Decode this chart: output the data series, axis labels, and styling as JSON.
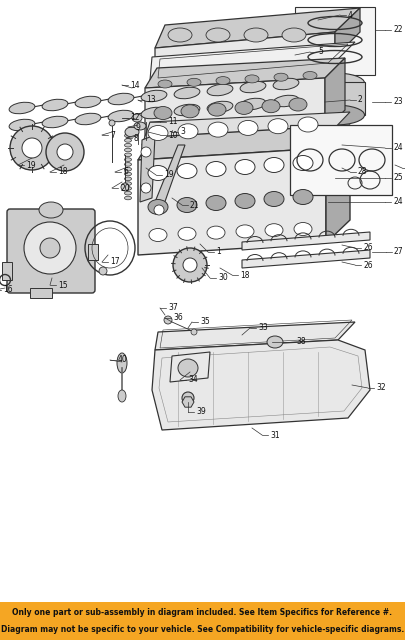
{
  "fig_width": 4.05,
  "fig_height": 6.4,
  "dpi": 100,
  "bg_color": "#ffffff",
  "banner_color": "#f5a623",
  "banner_text_line1": "Only one part or sub-assembly in diagram included. See Item Specifics for Reference #.",
  "banner_text_line2": "Diagram may not be specific to your vehicle. See Compatibility for vehicle-specific diagrams.",
  "banner_fontsize": 5.5,
  "banner_text_color": "#111111",
  "line_color": "#333333",
  "fill_light": "#e8e8e8",
  "fill_mid": "#cccccc",
  "fill_dark": "#aaaaaa"
}
